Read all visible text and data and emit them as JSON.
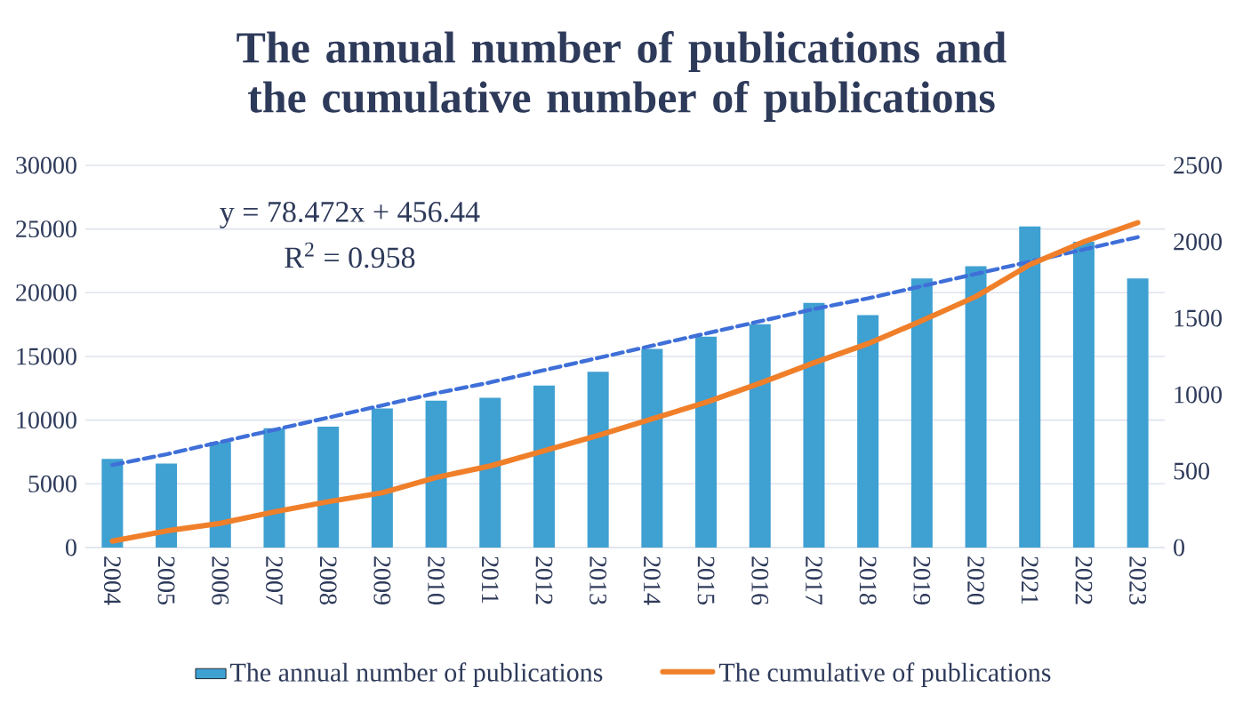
{
  "chart_data": {
    "type": "bar",
    "title": "The annual number of publications and the cumulative number of publications",
    "categories": [
      "2004",
      "2005",
      "2006",
      "2007",
      "2008",
      "2009",
      "2010",
      "2011",
      "2012",
      "2013",
      "2014",
      "2015",
      "2016",
      "2017",
      "2018",
      "2019",
      "2020",
      "2021",
      "2022",
      "2023"
    ],
    "series": [
      {
        "name": "The annual number of publications",
        "axis": "y2",
        "color": "#3fa0d2",
        "values": [
          580,
          550,
          690,
          780,
          790,
          910,
          960,
          980,
          1060,
          1150,
          1300,
          1380,
          1460,
          1600,
          1520,
          1760,
          1840,
          2100,
          2000,
          1760
        ]
      },
      {
        "type": "line",
        "axis": "y2",
        "line_style": "dashed",
        "color": "#3f6fd8",
        "values": [
          540,
          610,
          690,
          770,
          850,
          930,
          1010,
          1080,
          1160,
          1240,
          1320,
          1400,
          1480,
          1560,
          1630,
          1710,
          1790,
          1870,
          1950,
          2030
        ]
      },
      {
        "name": "The cumulative of publications",
        "type": "line",
        "color": "#f07f2a",
        "values": [
          500,
          1300,
          1900,
          2800,
          3600,
          4300,
          5500,
          6400,
          7600,
          8800,
          10100,
          11400,
          12900,
          14500,
          16000,
          17800,
          19700,
          22200,
          24000,
          25500
        ]
      }
    ],
    "ylim": [
      0,
      30000
    ],
    "yticks": [
      0,
      5000,
      10000,
      15000,
      20000,
      25000,
      30000
    ],
    "y2lim": [
      0,
      2500
    ],
    "y2ticks": [
      0,
      500,
      1000,
      1500,
      2000,
      2500
    ],
    "annotations": [
      "y = 78.472x + 456.44",
      "R$^{2}$ = 0.958"
    ],
    "grid": "y",
    "legend": "bottom",
    "marker": "none"
  }
}
